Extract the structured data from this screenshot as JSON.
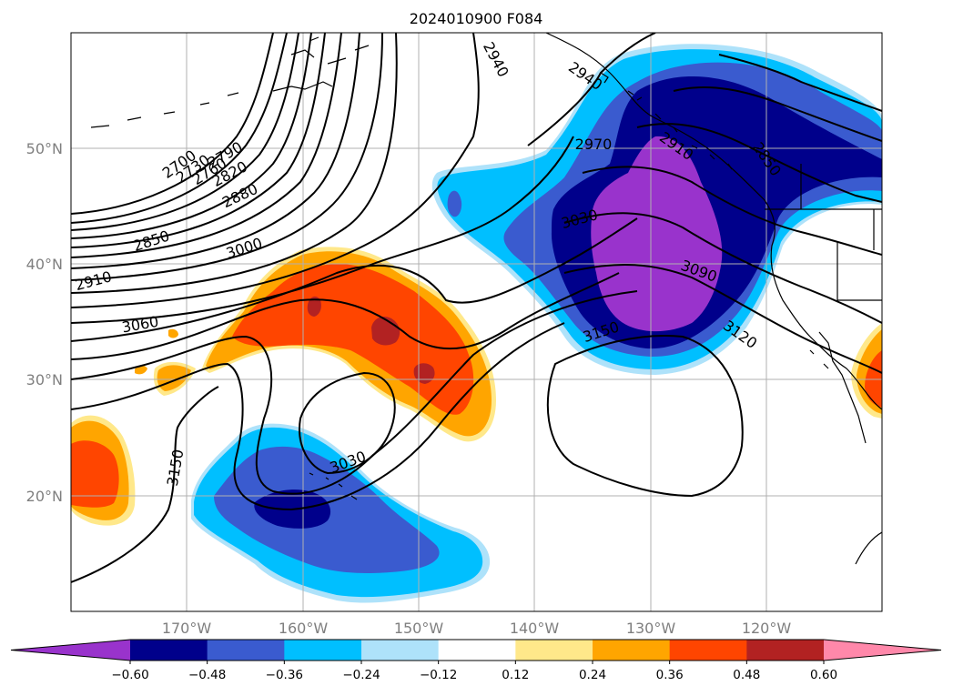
{
  "title": "2024010900 F084",
  "axes": {
    "lat_labels": [
      "50°N",
      "40°N",
      "30°N",
      "20°N"
    ],
    "lon_labels": [
      "170°W",
      "160°W",
      "150°W",
      "140°W",
      "130°W",
      "120°W"
    ]
  },
  "colorbar": {
    "ticks": [
      "−0.60",
      "−0.48",
      "−0.36",
      "−0.24",
      "−0.12",
      "0.12",
      "0.24",
      "0.36",
      "0.48",
      "0.60"
    ],
    "colors": [
      "#9933cc",
      "#00008b",
      "#3a5bcf",
      "#00bfff",
      "#aee2fa",
      "#ffffff",
      "#ffe88a",
      "#ffa500",
      "#ff4500",
      "#b22222",
      "#ff88aa"
    ]
  },
  "contour_labels": [
    {
      "text": "2940",
      "angle": 62
    },
    {
      "text": "2940",
      "angle": 35
    },
    {
      "text": "2970",
      "angle": 0
    },
    {
      "text": "2910",
      "angle": 35
    },
    {
      "text": "2850",
      "angle": 55
    },
    {
      "text": "2700",
      "angle": -35
    },
    {
      "text": "2730",
      "angle": -35
    },
    {
      "text": "2760",
      "angle": -32
    },
    {
      "text": "2790",
      "angle": -30
    },
    {
      "text": "2820",
      "angle": -28
    },
    {
      "text": "2880",
      "angle": -25
    },
    {
      "text": "2850",
      "angle": -18
    },
    {
      "text": "3000",
      "angle": -18
    },
    {
      "text": "2910",
      "angle": -15
    },
    {
      "text": "3030",
      "angle": -15
    },
    {
      "text": "3060",
      "angle": -10
    },
    {
      "text": "3090",
      "angle": 20
    },
    {
      "text": "3120",
      "angle": 35
    },
    {
      "text": "3150",
      "angle": -18
    },
    {
      "text": "3150",
      "angle": -80
    },
    {
      "text": "3030",
      "angle": -20
    }
  ]
}
